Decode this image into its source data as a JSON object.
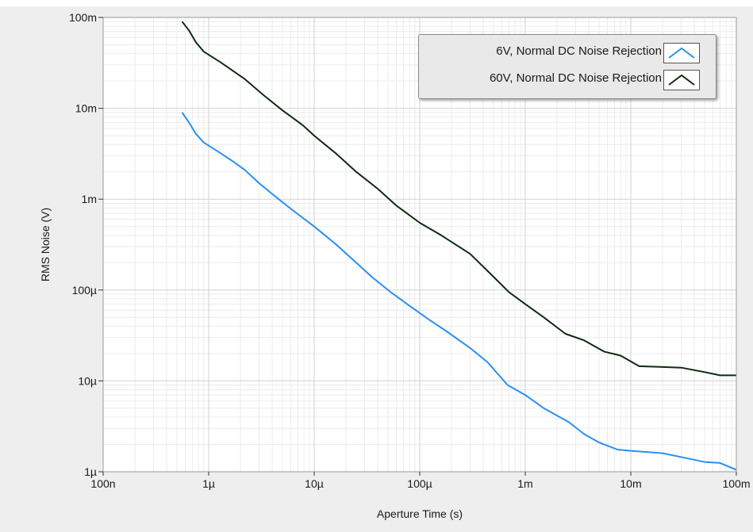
{
  "chart_data": {
    "type": "line",
    "xlabel": "Aperture Time (s)",
    "ylabel": "RMS Noise (V)",
    "x_scale": "log",
    "y_scale": "log",
    "xlim": [
      1e-07,
      0.1
    ],
    "ylim": [
      1e-06,
      0.1
    ],
    "x_ticks": [
      {
        "value": 1e-07,
        "label": "100n"
      },
      {
        "value": 1e-06,
        "label": "1µ"
      },
      {
        "value": 1e-05,
        "label": "10µ"
      },
      {
        "value": 0.0001,
        "label": "100µ"
      },
      {
        "value": 0.001,
        "label": "1m"
      },
      {
        "value": 0.01,
        "label": "10m"
      },
      {
        "value": 0.1,
        "label": "100m"
      }
    ],
    "y_ticks": [
      {
        "value": 1e-06,
        "label": "1µ"
      },
      {
        "value": 1e-05,
        "label": "10µ"
      },
      {
        "value": 0.0001,
        "label": "100µ"
      },
      {
        "value": 0.001,
        "label": "1m"
      },
      {
        "value": 0.01,
        "label": "10m"
      },
      {
        "value": 0.1,
        "label": "100m"
      }
    ],
    "grid": true,
    "legend_position": "top-right",
    "series": [
      {
        "name": "6V, Normal DC Noise Rejection",
        "color": "#2b8ff0",
        "points": [
          [
            5.6e-07,
            0.009
          ],
          [
            6.5e-07,
            0.007
          ],
          [
            7.6e-07,
            0.0052
          ],
          [
            9e-07,
            0.0042
          ],
          [
            1.2e-06,
            0.0034
          ],
          [
            1.7e-06,
            0.0026
          ],
          [
            2.2e-06,
            0.0021
          ],
          [
            3e-06,
            0.0015
          ],
          [
            4.6e-06,
            0.001
          ],
          [
            6.5e-06,
            0.00073
          ],
          [
            1e-05,
            0.0005
          ],
          [
            1.6e-05,
            0.00032
          ],
          [
            2.5e-05,
            0.0002
          ],
          [
            3.5e-05,
            0.00014
          ],
          [
            5.3e-05,
            9.5e-05
          ],
          [
            8e-05,
            6.7e-05
          ],
          [
            0.00012,
            4.8e-05
          ],
          [
            0.00018,
            3.5e-05
          ],
          [
            0.0003,
            2.3e-05
          ],
          [
            0.00044,
            1.6e-05
          ],
          [
            0.00068,
            9e-06
          ],
          [
            0.001,
            7e-06
          ],
          [
            0.0015,
            5e-06
          ],
          [
            0.0026,
            3.5e-06
          ],
          [
            0.0036,
            2.6e-06
          ],
          [
            0.005,
            2.1e-06
          ],
          [
            0.0075,
            1.75e-06
          ],
          [
            0.01,
            1.7e-06
          ],
          [
            0.02,
            1.6e-06
          ],
          [
            0.035,
            1.4e-06
          ],
          [
            0.05,
            1.28e-06
          ],
          [
            0.07,
            1.25e-06
          ],
          [
            0.1,
            1.05e-06
          ]
        ]
      },
      {
        "name": "60V, Normal DC Noise Rejection",
        "color": "#0f2a12",
        "points": [
          [
            5.6e-07,
            0.09
          ],
          [
            6.5e-07,
            0.072
          ],
          [
            7.6e-07,
            0.053
          ],
          [
            9e-07,
            0.042
          ],
          [
            1.3e-06,
            0.032
          ],
          [
            2.2e-06,
            0.021
          ],
          [
            3.3e-06,
            0.014
          ],
          [
            5e-06,
            0.0095
          ],
          [
            7.8e-06,
            0.0065
          ],
          [
            1e-05,
            0.005
          ],
          [
            1.6e-05,
            0.0032
          ],
          [
            2.5e-05,
            0.002
          ],
          [
            4e-05,
            0.0013
          ],
          [
            6e-05,
            0.00085
          ],
          [
            0.0001,
            0.00055
          ],
          [
            0.00016,
            0.0004
          ],
          [
            0.0003,
            0.00025
          ],
          [
            0.0005,
            0.00014
          ],
          [
            0.0007,
            9.5e-05
          ],
          [
            0.001,
            7e-05
          ],
          [
            0.0015,
            5e-05
          ],
          [
            0.0024,
            3.3e-05
          ],
          [
            0.0036,
            2.8e-05
          ],
          [
            0.0056,
            2.1e-05
          ],
          [
            0.008,
            1.9e-05
          ],
          [
            0.012,
            1.45e-05
          ],
          [
            0.02,
            1.42e-05
          ],
          [
            0.03,
            1.4e-05
          ],
          [
            0.05,
            1.25e-05
          ],
          [
            0.07,
            1.15e-05
          ],
          [
            0.1,
            1.15e-05
          ]
        ]
      }
    ]
  },
  "legend": {
    "entry_1": "6V, Normal DC Noise Rejection",
    "entry_2": "60V, Normal DC Noise Rejection"
  }
}
